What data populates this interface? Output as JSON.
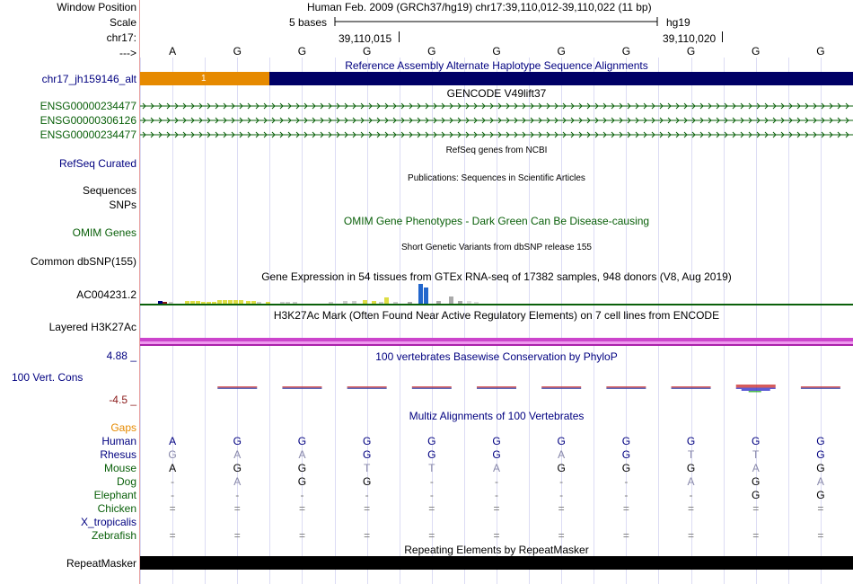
{
  "colors": {
    "navy": "#000080",
    "green": "#0a600a",
    "orange": "#e68a00",
    "darkred": "#8b1a1a",
    "magenta": "#cc33cc",
    "grid": "#d8d8ff",
    "black": "#000000"
  },
  "header": {
    "window_position_label": "Window Position",
    "scale_label": "Scale",
    "chrom_label": "chr17:",
    "arrow_label": "--->",
    "assembly_text": "Human Feb. 2009 (GRCh37/hg19)   chr17:39,110,012-39,110,022 (11 bp)",
    "scale_text": "5 bases",
    "scale_db": "hg19",
    "coord1": "39,110,015",
    "coord2": "39,110,020"
  },
  "sequence": [
    "A",
    "G",
    "G",
    "G",
    "G",
    "G",
    "G",
    "G",
    "G",
    "G",
    "G"
  ],
  "tracks": {
    "alt": {
      "title": "Reference Assembly Alternate Haplotype Sequence Alignments",
      "label": "chr17_jh159146_alt",
      "segment_label": "1"
    },
    "gencode": {
      "title": "GENCODE V49lift37",
      "rows": [
        "ENSG00000234477",
        "ENSG00000306126",
        "ENSG00000234477"
      ],
      "arrow_glyph": "›"
    },
    "refseq": {
      "title": "RefSeq genes from NCBI",
      "label": "RefSeq Curated"
    },
    "pubs": {
      "title": "Publications: Sequences in Scientific Articles",
      "label1": "Sequences",
      "label2": "SNPs"
    },
    "omim": {
      "title": "OMIM Gene Phenotypes - Dark Green Can Be Disease-causing",
      "label": "OMIM Genes"
    },
    "dbsnp": {
      "title": "Short Genetic Variants from dbSNP release 155",
      "label": "Common dbSNP(155)"
    },
    "gtex": {
      "title": "Gene Expression in 54 tissues from GTEx RNA-seq of 17382 samples, 948 donors (V8, Aug 2019)",
      "label": "AC004231.2"
    },
    "h3k27ac": {
      "title": "H3K27Ac Mark (Often Found Near Active Regulatory Elements) on 7 cell lines from ENCODE",
      "label": "Layered H3K27Ac"
    },
    "phylop": {
      "title": "100 vertebrates Basewise Conservation by PhyloP",
      "label": "100 Vert. Cons",
      "max": "4.88 _",
      "min": "-4.5 _"
    },
    "multiz": {
      "title": "Multiz Alignments of 100 Vertebrates",
      "gaps_label": "Gaps"
    },
    "repeat": {
      "title": "Repeating Elements by RepeatMasker",
      "label": "RepeatMasker"
    }
  },
  "species": [
    {
      "name": "Human",
      "bases": [
        "A",
        "G",
        "G",
        "G",
        "G",
        "G",
        "G",
        "G",
        "G",
        "G",
        "G"
      ]
    },
    {
      "name": "Rhesus",
      "bases": [
        "G",
        "A",
        "A",
        "G",
        "G",
        "G",
        "A",
        "G",
        "T",
        "T",
        "G"
      ]
    },
    {
      "name": "Mouse",
      "bases": [
        "A",
        "G",
        "G",
        "T",
        "T",
        "A",
        "G",
        "G",
        "G",
        "A",
        "G"
      ]
    },
    {
      "name": "Dog",
      "bases": [
        "-",
        "A",
        "G",
        "G",
        "-",
        "-",
        "-",
        "-",
        "A",
        "G",
        "A"
      ]
    },
    {
      "name": "Elephant",
      "bases": [
        "-",
        "-",
        "-",
        "-",
        "-",
        "-",
        "-",
        "-",
        "-",
        "G",
        "G"
      ]
    },
    {
      "name": "Chicken",
      "bases": [
        "=",
        "=",
        "=",
        "=",
        "=",
        "=",
        "=",
        "=",
        "=",
        "=",
        "="
      ]
    },
    {
      "name": "X_tropicalis",
      "bases": [
        "",
        "",
        "",
        "",
        "",
        "",
        "",
        "",
        "",
        "",
        ""
      ]
    },
    {
      "name": "Zebrafish",
      "bases": [
        "=",
        "=",
        "=",
        "=",
        "=",
        "=",
        "=",
        "=",
        "=",
        "=",
        "="
      ]
    }
  ]
}
